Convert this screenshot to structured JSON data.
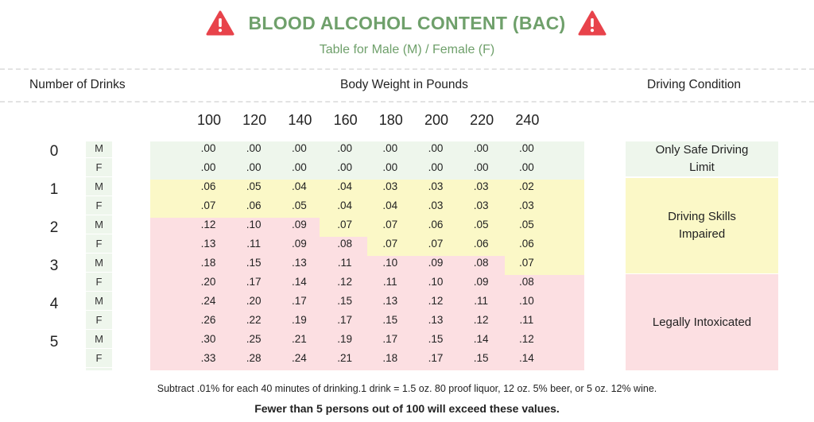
{
  "header": {
    "title": "BLOOD ALCOHOL CONTENT (BAC)",
    "subtitle": "Table for Male (M) / Female (F)",
    "warning_icon_color": "#e8434b",
    "title_color": "#6fa06b"
  },
  "columns": {
    "drinks_label": "Number of Drinks",
    "weight_label": "Body Weight in Pounds",
    "condition_label": "Driving Condition"
  },
  "weights": [
    "100",
    "120",
    "140",
    "160",
    "180",
    "200",
    "220",
    "240"
  ],
  "drinks": [
    "0",
    "1",
    "2",
    "3",
    "4",
    "5"
  ],
  "sexes": [
    "M",
    "F"
  ],
  "bac_table": [
    {
      "drinks": "0",
      "sex": "M",
      "values": [
        ".00",
        ".00",
        ".00",
        ".00",
        ".00",
        ".00",
        ".00",
        ".00"
      ]
    },
    {
      "drinks": "0",
      "sex": "F",
      "values": [
        ".00",
        ".00",
        ".00",
        ".00",
        ".00",
        ".00",
        ".00",
        ".00"
      ]
    },
    {
      "drinks": "1",
      "sex": "M",
      "values": [
        ".06",
        ".05",
        ".04",
        ".04",
        ".03",
        ".03",
        ".03",
        ".02"
      ]
    },
    {
      "drinks": "1",
      "sex": "F",
      "values": [
        ".07",
        ".06",
        ".05",
        ".04",
        ".04",
        ".03",
        ".03",
        ".03"
      ]
    },
    {
      "drinks": "2",
      "sex": "M",
      "values": [
        ".12",
        ".10",
        ".09",
        ".07",
        ".07",
        ".06",
        ".05",
        ".05"
      ]
    },
    {
      "drinks": "2",
      "sex": "F",
      "values": [
        ".13",
        ".11",
        ".09",
        ".08",
        ".07",
        ".07",
        ".06",
        ".06"
      ]
    },
    {
      "drinks": "3",
      "sex": "M",
      "values": [
        ".18",
        ".15",
        ".13",
        ".11",
        ".10",
        ".09",
        ".08",
        ".07"
      ]
    },
    {
      "drinks": "3",
      "sex": "F",
      "values": [
        ".20",
        ".17",
        ".14",
        ".12",
        ".11",
        ".10",
        ".09",
        ".08"
      ]
    },
    {
      "drinks": "4",
      "sex": "M",
      "values": [
        ".24",
        ".20",
        ".17",
        ".15",
        ".13",
        ".12",
        ".11",
        ".10"
      ]
    },
    {
      "drinks": "4",
      "sex": "F",
      "values": [
        ".26",
        ".22",
        ".19",
        ".17",
        ".15",
        ".13",
        ".12",
        ".11"
      ]
    },
    {
      "drinks": "5",
      "sex": "M",
      "values": [
        ".30",
        ".25",
        ".21",
        ".19",
        ".17",
        ".15",
        ".14",
        ".12"
      ]
    },
    {
      "drinks": "5",
      "sex": "F",
      "values": [
        ".33",
        ".28",
        ".24",
        ".21",
        ".18",
        ".17",
        ".15",
        ".14"
      ]
    }
  ],
  "conditions": {
    "safe": "Only Safe Driving Limit",
    "impaired": "Driving Skills Impaired",
    "legal": "Legally Intoxicated",
    "safe_color": "#eef6ec",
    "impaired_color": "#fbf8c7",
    "legal_color": "#fcdfe2"
  },
  "footer": {
    "note": "Subtract .01% for each 40 minutes of drinking.1 drink = 1.5 oz. 80 proof liquor, 12 oz. 5% beer, or 5 oz. 12% wine.",
    "emphasis": "Fewer than 5 persons out of 100 will exceed these values."
  }
}
